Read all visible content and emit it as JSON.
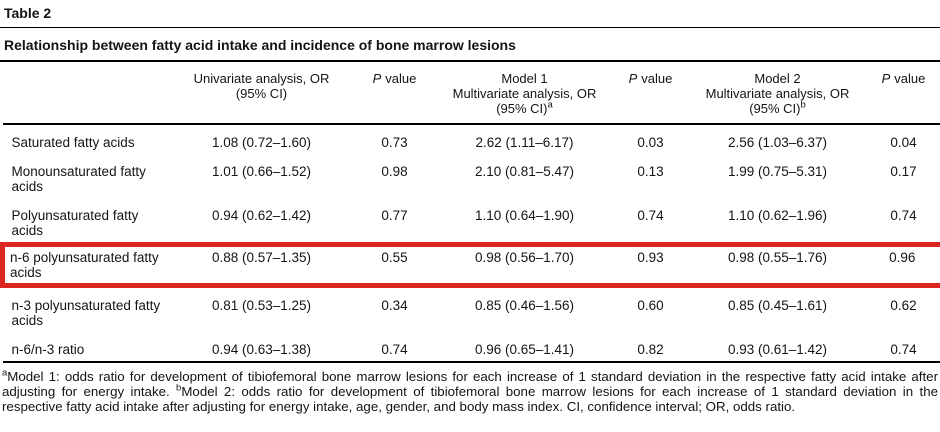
{
  "page": {
    "table_label": "Table 2",
    "caption": "Relationship between fatty acid intake and incidence of bone marrow lesions"
  },
  "colors": {
    "highlight_red": "#dd2621",
    "text": "#141414",
    "rule": "#000000"
  },
  "header": {
    "univariate": {
      "line1": "Univariate analysis, OR",
      "line2": "(95% CI)"
    },
    "p_italic": "P",
    "p_rest": "value",
    "model1": {
      "line1": "Model 1",
      "line2": "Multivariate analysis, OR",
      "line3": "(95% CI)",
      "sup": "a"
    },
    "model2": {
      "line1": "Model 2",
      "line2": "Multivariate analysis, OR",
      "line3": "(95% CI)",
      "sup": "b"
    }
  },
  "rows": [
    {
      "label": "Saturated fatty acids",
      "univariate": "1.08 (0.72–1.60)",
      "p1": "0.73",
      "model1": "2.62 (1.11–6.17)",
      "p2": "0.03",
      "model2": "2.56 (1.03–6.37)",
      "p3": "0.04",
      "highlighted": false
    },
    {
      "label": "Monounsaturated fatty acids",
      "univariate": "1.01 (0.66–1.52)",
      "p1": "0.98",
      "model1": "2.10 (0.81–5.47)",
      "p2": "0.13",
      "model2": "1.99 (0.75–5.31)",
      "p3": "0.17",
      "highlighted": false
    },
    {
      "label": "Polyunsaturated fatty acids",
      "univariate": "0.94 (0.62–1.42)",
      "p1": "0.77",
      "model1": "1.10 (0.64–1.90)",
      "p2": "0.74",
      "model2": "1.10 (0.62–1.96)",
      "p3": "0.74",
      "highlighted": false
    },
    {
      "label": "n-6 polyunsaturated fatty acids",
      "univariate": "0.88 (0.57–1.35)",
      "p1": "0.55",
      "model1": "0.98 (0.56–1.70)",
      "p2": "0.93",
      "model2": "0.98 (0.55–1.76)",
      "p3": "0.96",
      "highlighted": true
    },
    {
      "label": "n-3 polyunsaturated fatty acids",
      "univariate": "0.81 (0.53–1.25)",
      "p1": "0.34",
      "model1": "0.85 (0.46–1.56)",
      "p2": "0.60",
      "model2": "0.85 (0.45–1.61)",
      "p3": "0.62",
      "highlighted": false
    },
    {
      "label": "n-6/n-3 ratio",
      "univariate": "0.94 (0.63–1.38)",
      "p1": "0.74",
      "model1": "0.96 (0.65–1.41)",
      "p2": "0.82",
      "model2": "0.93 (0.61–1.42)",
      "p3": "0.74",
      "highlighted": false
    }
  ],
  "footnote": {
    "sup_a": "a",
    "part_a": "Model 1: odds ratio for development of tibiofemoral bone marrow lesions for each increase of 1 standard deviation in the respective fatty acid intake after adjusting for energy intake. ",
    "sup_b": "b",
    "part_b": "Model 2: odds ratio for development of tibiofemoral bone marrow lesions for each increase of 1 standard deviation in the respective fatty acid intake after adjusting for energy intake, age, gender, and body mass index. CI, confidence interval; OR, odds ratio."
  }
}
